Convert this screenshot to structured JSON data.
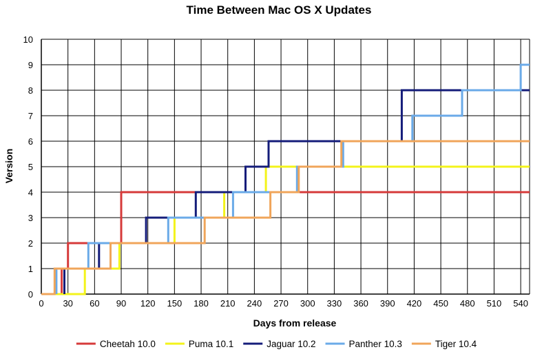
{
  "chart_data": {
    "type": "line",
    "title": "Time Between Mac OS X Updates",
    "xlabel": "Days from release",
    "ylabel": "Version",
    "xlim": [
      0,
      550
    ],
    "ylim": [
      0,
      10
    ],
    "xticks": [
      0,
      30,
      60,
      90,
      120,
      150,
      180,
      210,
      240,
      270,
      300,
      330,
      360,
      390,
      420,
      450,
      480,
      510,
      540
    ],
    "yticks": [
      0,
      1,
      2,
      3,
      4,
      5,
      6,
      7,
      8,
      9,
      10
    ],
    "grid": true,
    "legend_position": "bottom",
    "step": true,
    "series": [
      {
        "name": "Cheetah 10.0",
        "color": "#d63a3a",
        "points": [
          [
            23,
            0
          ],
          [
            23,
            1
          ],
          [
            30,
            1
          ],
          [
            30,
            2
          ],
          [
            45,
            2
          ],
          [
            45,
            2
          ],
          [
            90,
            2
          ],
          [
            90,
            4
          ],
          [
            550,
            4
          ]
        ]
      },
      {
        "name": "Puma 10.1",
        "color": "#f3f31a",
        "points": [
          [
            0,
            0
          ],
          [
            49,
            0
          ],
          [
            49,
            1
          ],
          [
            88,
            1
          ],
          [
            88,
            2
          ],
          [
            150,
            2
          ],
          [
            150,
            3
          ],
          [
            206,
            3
          ],
          [
            206,
            4
          ],
          [
            253,
            4
          ],
          [
            253,
            5
          ],
          [
            550,
            5
          ]
        ]
      },
      {
        "name": "Jaguar 10.2",
        "color": "#141c7a",
        "points": [
          [
            26,
            0
          ],
          [
            26,
            1
          ],
          [
            65,
            1
          ],
          [
            65,
            2
          ],
          [
            118,
            2
          ],
          [
            118,
            3
          ],
          [
            174,
            3
          ],
          [
            174,
            4
          ],
          [
            230,
            4
          ],
          [
            230,
            5
          ],
          [
            256,
            5
          ],
          [
            256,
            6
          ],
          [
            406,
            6
          ],
          [
            406,
            8
          ],
          [
            550,
            8
          ]
        ]
      },
      {
        "name": "Panther 10.3",
        "color": "#6aaae8",
        "points": [
          [
            17,
            0
          ],
          [
            17,
            1
          ],
          [
            53,
            1
          ],
          [
            53,
            2
          ],
          [
            143,
            2
          ],
          [
            143,
            3
          ],
          [
            216,
            3
          ],
          [
            216,
            4
          ],
          [
            288,
            4
          ],
          [
            288,
            5
          ],
          [
            340,
            5
          ],
          [
            340,
            6
          ],
          [
            418,
            6
          ],
          [
            418,
            7
          ],
          [
            474,
            7
          ],
          [
            474,
            8
          ],
          [
            540,
            8
          ],
          [
            540,
            9
          ],
          [
            550,
            9
          ]
        ]
      },
      {
        "name": "Tiger 10.4",
        "color": "#f0a55a",
        "points": [
          [
            0,
            0
          ],
          [
            15,
            0
          ],
          [
            15,
            1
          ],
          [
            78,
            1
          ],
          [
            78,
            2
          ],
          [
            184,
            2
          ],
          [
            184,
            3
          ],
          [
            258,
            3
          ],
          [
            258,
            4
          ],
          [
            290,
            4
          ],
          [
            290,
            5
          ],
          [
            338,
            5
          ],
          [
            338,
            6
          ],
          [
            550,
            6
          ]
        ]
      }
    ]
  }
}
